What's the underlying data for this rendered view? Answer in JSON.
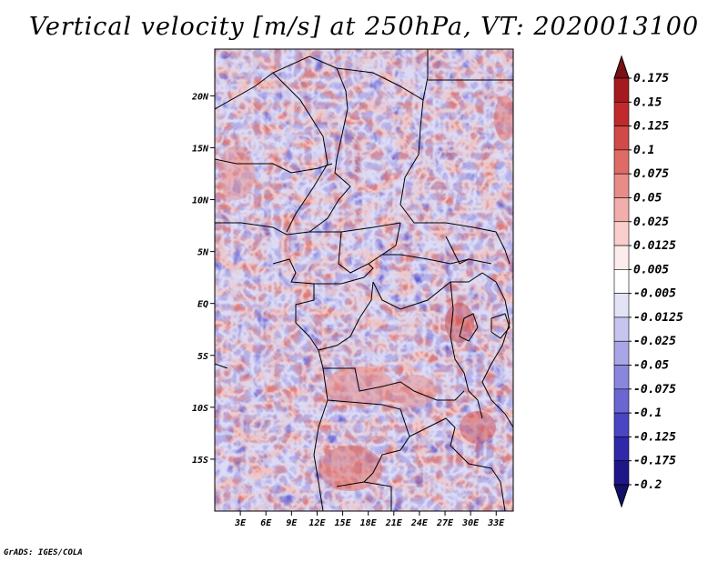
{
  "title": "Vertical velocity [m/s] at 250hPa, VT: 2020013100",
  "credit": "GrADS: IGES/COLA",
  "map": {
    "variable": "Vertical velocity",
    "units": "m/s",
    "level": "250hPa",
    "valid_time": "2020013100",
    "lon_ticks": [
      "3E",
      "6E",
      "9E",
      "12E",
      "15E",
      "18E",
      "21E",
      "24E",
      "27E",
      "30E",
      "33E"
    ],
    "lat_ticks": [
      "20N",
      "15N",
      "10N",
      "5N",
      "EQ",
      "5S",
      "10S",
      "15S"
    ],
    "lon_range": [
      0,
      35
    ],
    "lat_range": [
      -20,
      24.5
    ]
  },
  "colorbar": {
    "labels": [
      "0.175",
      "0.15",
      "0.125",
      "0.1",
      "0.075",
      "0.05",
      "0.025",
      "0.0125",
      "0.005",
      "-0.005",
      "-0.0125",
      "-0.025",
      "-0.05",
      "-0.075",
      "-0.1",
      "-0.125",
      "-0.175",
      "-0.2"
    ],
    "colors": [
      "#7a0f14",
      "#a51a1f",
      "#c02a2c",
      "#d24a47",
      "#de6b66",
      "#e88c88",
      "#f1aeaa",
      "#f8cfcc",
      "#fceceb",
      "#ffffff",
      "#e3e3f8",
      "#c7c5f0",
      "#a9a6e8",
      "#8a86de",
      "#6a66d2",
      "#4a45c2",
      "#2f28a8",
      "#1f168a",
      "#14106a"
    ]
  }
}
